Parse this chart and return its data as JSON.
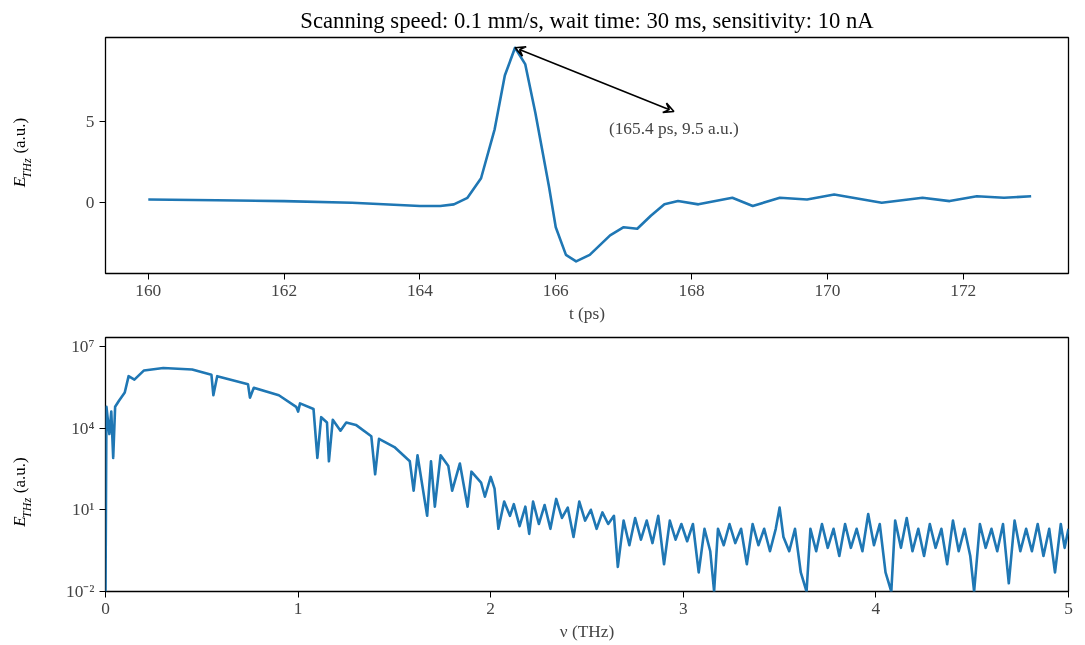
{
  "chart_data": [
    {
      "type": "line",
      "title": "Scanning speed: 0.1 mm/s, wait time: 30 ms, sensitivity: 10 nA",
      "xlabel": "t (ps)",
      "ylabel": "E$_{THz}$ (a.u.)",
      "x": [
        160,
        161,
        162,
        163,
        164,
        164.3,
        164.5,
        164.7,
        164.9,
        165.1,
        165.25,
        165.4,
        165.55,
        165.7,
        165.9,
        166.0,
        166.15,
        166.3,
        166.5,
        166.8,
        167.0,
        167.2,
        167.4,
        167.6,
        167.8,
        168.1,
        168.6,
        168.9,
        169.3,
        169.7,
        170.1,
        170.8,
        171.4,
        171.8,
        172.2,
        172.6,
        173
      ],
      "series": [
        {
          "color": "#1f77b4",
          "values": [
            0.2,
            0.15,
            0.1,
            0,
            -0.2,
            -0.2,
            -0.1,
            0.3,
            1.5,
            4.5,
            7.8,
            9.5,
            8.5,
            5.5,
            1,
            -1.5,
            -3.2,
            -3.6,
            -3.2,
            -2,
            -1.5,
            -1.6,
            -0.8,
            -0.1,
            0.1,
            -0.1,
            0.3,
            -0.2,
            0.3,
            0.2,
            0.5,
            0.0,
            0.3,
            0.1,
            0.4,
            0.3,
            0.4
          ]
        }
      ],
      "xlim": [
        159.37,
        173.55
      ],
      "ylim": [
        -4.34,
        10.13
      ],
      "xticks": [
        160,
        162,
        164,
        166,
        168,
        170,
        172
      ],
      "yticks": [
        0,
        5
      ],
      "annotations": [
        {
          "text": "(165.4 ps, 9.5 a.u.)",
          "x": 165.4,
          "y": 9.5
        }
      ],
      "grid": false
    },
    {
      "type": "line",
      "xlabel": "ν (THz)",
      "ylabel": "E$_{THz}$ (a.u.)",
      "log": true,
      "x": [
        0,
        0.005,
        0.02,
        0.03,
        0.04,
        0.05,
        0.07,
        0.1,
        0.12,
        0.15,
        0.2,
        0.3,
        0.45,
        0.55,
        0.56,
        0.58,
        0.74,
        0.75,
        0.77,
        0.9,
        0.99,
        1.0,
        1.01,
        1.08,
        1.1,
        1.12,
        1.15,
        1.16,
        1.18,
        1.22,
        1.25,
        1.3,
        1.38,
        1.4,
        1.42,
        1.5,
        1.58,
        1.6,
        1.62,
        1.67,
        1.69,
        1.71,
        1.74,
        1.78,
        1.8,
        1.84,
        1.88,
        1.9,
        1.95,
        1.97,
        2.0,
        2.02,
        2.04,
        2.07,
        2.1,
        2.12,
        2.15,
        2.18,
        2.2,
        2.22,
        2.25,
        2.28,
        2.31,
        2.34,
        2.37,
        2.4,
        2.43,
        2.46,
        2.49,
        2.52,
        2.55,
        2.58,
        2.61,
        2.64,
        2.66,
        2.69,
        2.72,
        2.75,
        2.78,
        2.81,
        2.84,
        2.87,
        2.9,
        2.93,
        2.96,
        2.99,
        3.02,
        3.05,
        3.08,
        3.11,
        3.14,
        3.16,
        3.18,
        3.21,
        3.24,
        3.27,
        3.3,
        3.33,
        3.36,
        3.39,
        3.42,
        3.45,
        3.48,
        3.5,
        3.52,
        3.55,
        3.58,
        3.61,
        3.64,
        3.66,
        3.69,
        3.72,
        3.75,
        3.78,
        3.81,
        3.84,
        3.87,
        3.9,
        3.93,
        3.96,
        3.99,
        4.02,
        4.05,
        4.08,
        4.1,
        4.13,
        4.16,
        4.19,
        4.22,
        4.25,
        4.28,
        4.31,
        4.34,
        4.37,
        4.4,
        4.43,
        4.46,
        4.49,
        4.51,
        4.54,
        4.57,
        4.6,
        4.63,
        4.66,
        4.69,
        4.72,
        4.75,
        4.78,
        4.81,
        4.84,
        4.87,
        4.9,
        4.93,
        4.96,
        4.98,
        5.0
      ],
      "series": [
        {
          "color": "#1f77b4",
          "values": [
            0.01,
            60000.0,
            6000.0,
            40000.0,
            800,
            60000.0,
            100000.0,
            200000.0,
            800000.0,
            600000.0,
            1300000.0,
            1600000.0,
            1400000.0,
            900000.0,
            160000.0,
            800000.0,
            400000.0,
            130000.0,
            300000.0,
            160000.0,
            60000.0,
            40000.0,
            80000.0,
            50000.0,
            800,
            25000.0,
            16000.0,
            600,
            20000.0,
            8000.0,
            16000.0,
            13000.0,
            5000.0,
            200,
            4000.0,
            2000.0,
            600,
            50,
            1000,
            6,
            600,
            13,
            1000,
            400,
            50,
            500,
            13,
            250,
            100,
            30,
            160,
            60,
            2,
            20,
            6,
            16,
            2.5,
            13,
            1.3,
            20,
            3,
            15,
            2,
            25,
            5,
            12,
            1,
            20,
            4,
            10,
            2,
            8,
            3,
            6,
            0.08,
            4,
            0.5,
            5,
            0.8,
            4,
            0.6,
            6,
            0.1,
            4,
            0.8,
            3,
            0.7,
            3,
            0.05,
            2,
            0.3,
            0.01,
            2,
            0.5,
            3,
            0.6,
            2,
            0.1,
            3,
            0.5,
            2,
            0.3,
            2,
            12,
            1,
            0.3,
            2,
            0.05,
            0.01,
            2,
            0.3,
            3,
            0.4,
            2,
            0.2,
            3,
            0.4,
            2,
            0.3,
            7,
            0.5,
            3,
            0.05,
            0.01,
            4,
            0.4,
            5,
            0.3,
            2,
            0.2,
            3,
            0.4,
            2,
            0.1,
            4,
            0.3,
            2,
            0.2,
            0.01,
            3,
            0.4,
            2,
            0.3,
            3,
            0.02,
            4,
            0.3,
            2,
            0.3,
            3,
            0.2,
            2,
            0.05,
            3,
            0.4,
            2
          ]
        }
      ],
      "xlim": [
        0,
        5
      ],
      "ylim": [
        0.01,
        21000000.0
      ],
      "xticks": [
        0,
        1,
        2,
        3,
        4,
        5
      ],
      "yticks": [
        {
          "value": 0.01,
          "label": "10⁻²"
        },
        {
          "value": 10,
          "label": "10¹"
        },
        {
          "value": 10000,
          "label": "10⁴"
        },
        {
          "value": 10000000,
          "label": "10⁷"
        }
      ],
      "grid": false
    }
  ]
}
